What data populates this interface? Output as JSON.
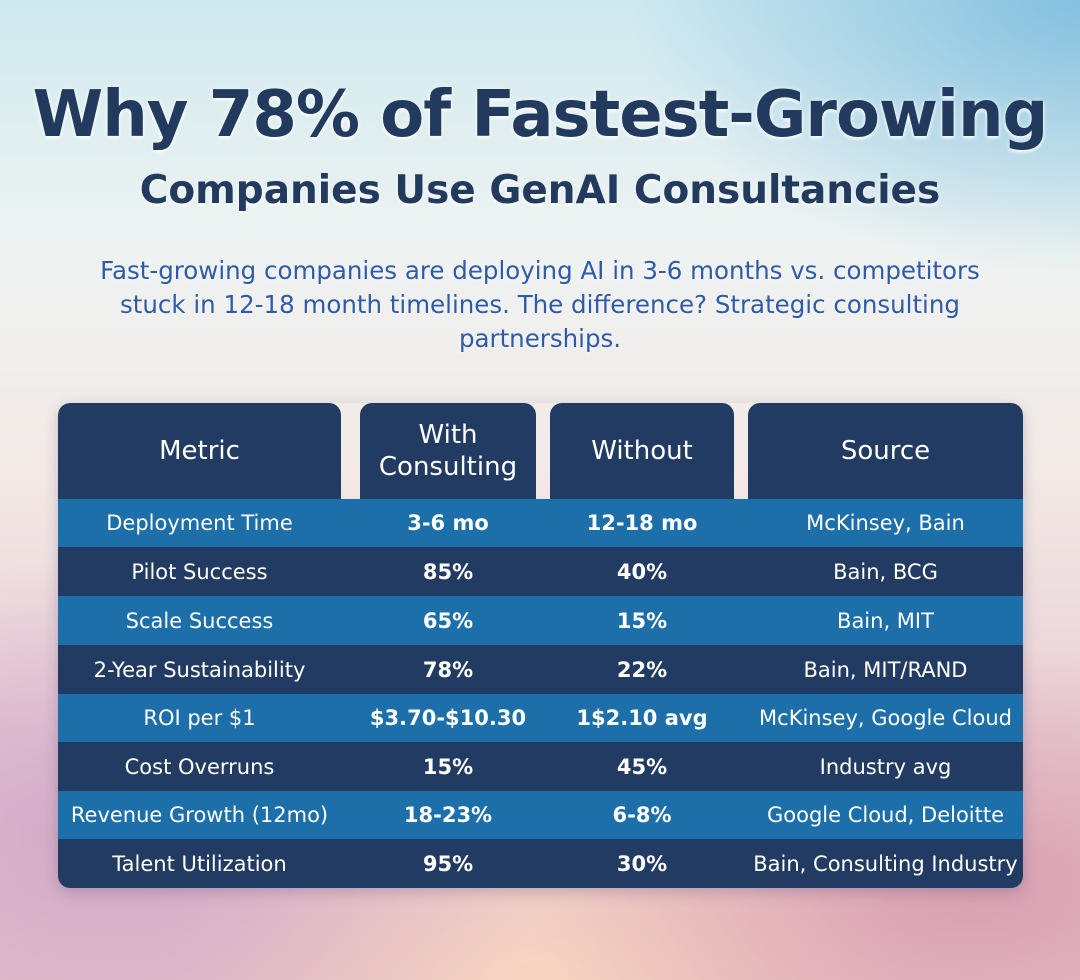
{
  "title_line1": "Why 78% of Fastest-Growing",
  "title_line2": "Companies Use GenAI Consultancies",
  "subtitle": "Fast-growing companies are deploying AI in 3-6 months vs. competitors stuck in 12-18 month timelines. The difference? Strategic consulting partnerships.",
  "table": {
    "headers": [
      "Metric",
      "With Consulting",
      "Without",
      "Source"
    ],
    "rows": [
      {
        "metric": "Deployment Time",
        "with": "3-6 mo",
        "without": "12-18 mo",
        "source": "McKinsey, Bain"
      },
      {
        "metric": "Pilot Success",
        "with": "85%",
        "without": "40%",
        "source": "Bain, BCG"
      },
      {
        "metric": "Scale Success",
        "with": "65%",
        "without": "15%",
        "source": "Bain, MIT"
      },
      {
        "metric": "2-Year Sustainability",
        "with": "78%",
        "without": "22%",
        "source": "Bain, MIT/RAND"
      },
      {
        "metric": "ROI per $1",
        "with": "$3.70-$10.30",
        "without": "1$2.10 avg",
        "source": "McKinsey, Google Cloud"
      },
      {
        "metric": "Cost Overruns",
        "with": "15%",
        "without": "45%",
        "source": "Industry avg"
      },
      {
        "metric": "Revenue Growth (12mo)",
        "with": "18-23%",
        "without": "6-8%",
        "source": "Google Cloud, Deloitte"
      },
      {
        "metric": "Talent Utilization",
        "with": "95%",
        "without": "30%",
        "source": "Bain, Consulting Industry"
      }
    ]
  },
  "colors": {
    "title": "#213a5e",
    "subtitle": "#2e5aa8",
    "header_bg": "#223b62",
    "row_light": "#1c6fa8",
    "row_dark": "#223b62"
  }
}
